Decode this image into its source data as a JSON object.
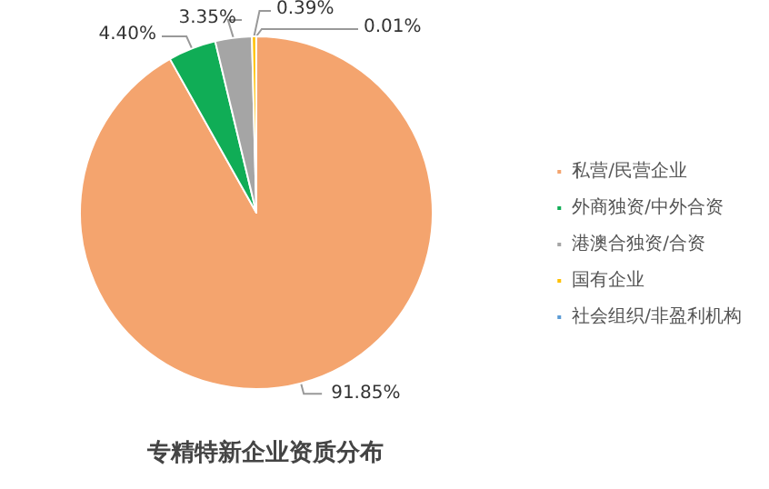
{
  "chart_data": {
    "type": "pie",
    "title": "专精特新企业资质分布",
    "categories": [
      "私营/民营企业",
      "外商独资/中外合资",
      "港澳合独资/合资",
      "国有企业",
      "社会组织/非盈利机构"
    ],
    "values": [
      91.85,
      4.4,
      3.35,
      0.39,
      0.01
    ],
    "value_labels": [
      "91.85%",
      "4.40%",
      "3.35%",
      "0.39%",
      "0.01%"
    ],
    "colors": [
      "#f4a46e",
      "#10ad56",
      "#a5a5a5",
      "#ffc000",
      "#5b9bd5"
    ],
    "legend": "right"
  }
}
